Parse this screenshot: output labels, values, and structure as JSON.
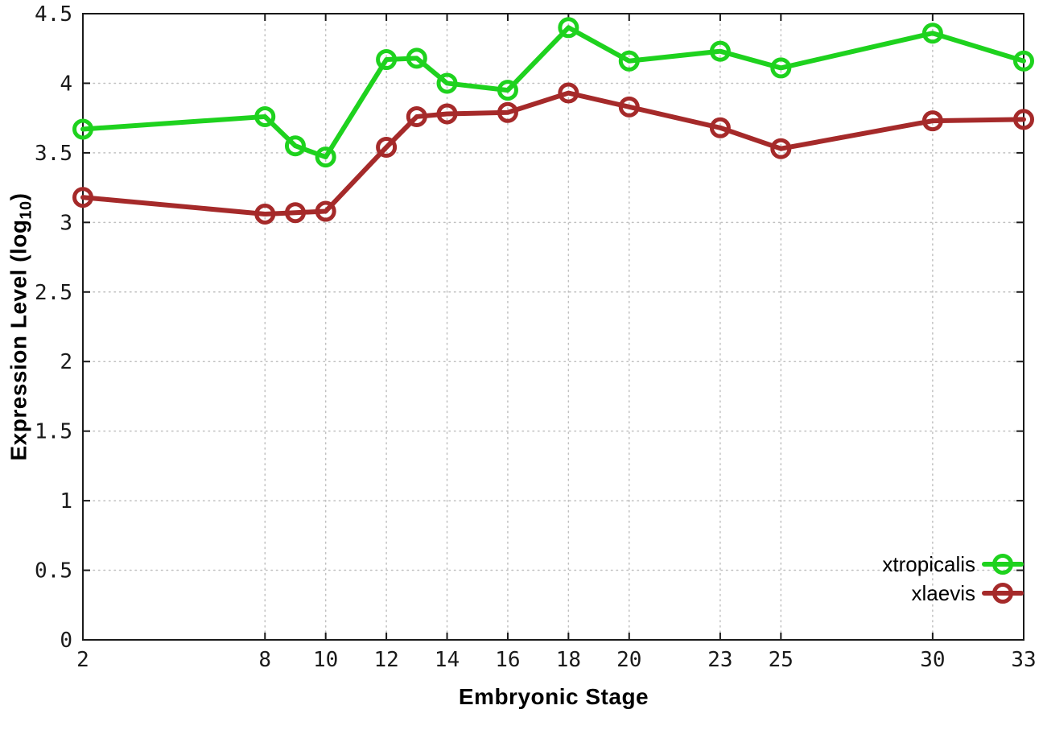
{
  "figure": {
    "background": "#ffffff"
  },
  "chart_data": {
    "type": "line",
    "title": "",
    "xlabel": "Embryonic Stage",
    "ylabel": "Expression Level (log10)",
    "ylabel_parts": {
      "main": "Expression Level (log",
      "sub": "10",
      "close": ")"
    },
    "x": [
      2,
      8,
      9,
      10,
      12,
      13,
      14,
      16,
      18,
      20,
      23,
      25,
      30,
      33
    ],
    "series": [
      {
        "name": "xtropicalis",
        "color": "#1ed21e",
        "values": [
          3.67,
          3.76,
          3.55,
          3.47,
          4.17,
          4.18,
          4.0,
          3.95,
          4.4,
          4.16,
          4.23,
          4.11,
          4.36,
          4.16
        ]
      },
      {
        "name": "xlaevis",
        "color": "#a52a2a",
        "values": [
          3.18,
          3.06,
          3.07,
          3.08,
          3.54,
          3.76,
          3.78,
          3.79,
          3.93,
          3.83,
          3.68,
          3.53,
          3.73,
          3.74
        ]
      }
    ],
    "xlim": [
      2,
      33
    ],
    "ylim": [
      0,
      4.5
    ],
    "xticks": [
      2,
      8,
      10,
      12,
      14,
      16,
      18,
      20,
      23,
      25,
      30,
      33
    ],
    "xtick_labels": [
      "2",
      "8",
      "10",
      "12",
      "14",
      "16",
      "18",
      "20",
      "23",
      "25",
      "30",
      "33"
    ],
    "yticks": [
      0,
      0.5,
      1,
      1.5,
      2,
      2.5,
      3,
      3.5,
      4,
      4.5
    ],
    "ytick_labels": [
      "0",
      "0.5",
      "1",
      "1.5",
      "2",
      "2.5",
      "3",
      "3.5",
      "4",
      "4.5"
    ],
    "grid": true,
    "legend_position": "bottom-right",
    "colors": {
      "grid": "#c0c0c0",
      "axis": "#1a1a1a",
      "tick_text": "#1a1a1a"
    }
  }
}
